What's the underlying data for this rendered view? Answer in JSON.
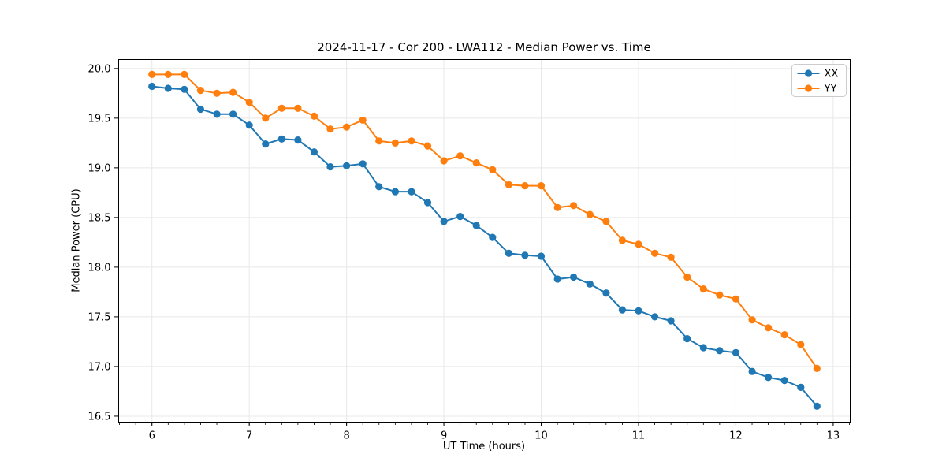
{
  "chart_data": {
    "type": "line",
    "title": "2024-11-17 - Cor 200 - LWA112 - Median Power vs. Time",
    "xlabel": "UT Time (hours)",
    "ylabel": "Median Power (CPU)",
    "xlim": [
      5.658,
      13.175
    ],
    "ylim": [
      16.44,
      20.09
    ],
    "xticks": [
      6,
      7,
      8,
      9,
      10,
      11,
      12,
      13
    ],
    "xtick_labels": [
      "6",
      "7",
      "8",
      "9",
      "10",
      "11",
      "12",
      "13"
    ],
    "yticks": [
      16.5,
      17.0,
      17.5,
      18.0,
      18.5,
      19.0,
      19.5,
      20.0
    ],
    "ytick_labels": [
      "16.5",
      "17.0",
      "17.5",
      "18.0",
      "18.5",
      "19.0",
      "19.5",
      "20.0"
    ],
    "x_minor_tick_step": 0.166667,
    "grid": true,
    "legend_position": "upper right",
    "marker": "circle",
    "x": [
      6.0,
      6.167,
      6.333,
      6.5,
      6.667,
      6.833,
      7.0,
      7.167,
      7.333,
      7.5,
      7.667,
      7.833,
      8.0,
      8.167,
      8.333,
      8.5,
      8.667,
      8.833,
      9.0,
      9.167,
      9.333,
      9.5,
      9.667,
      9.833,
      10.0,
      10.167,
      10.333,
      10.5,
      10.667,
      10.833,
      11.0,
      11.167,
      11.333,
      11.5,
      11.667,
      11.833,
      12.0,
      12.167,
      12.333,
      12.5,
      12.667,
      12.833
    ],
    "series": [
      {
        "name": "XX",
        "color": "#1f77b4",
        "values": [
          19.82,
          19.8,
          19.79,
          19.59,
          19.54,
          19.54,
          19.43,
          19.24,
          19.29,
          19.28,
          19.16,
          19.01,
          19.02,
          19.04,
          18.81,
          18.76,
          18.76,
          18.65,
          18.46,
          18.51,
          18.42,
          18.3,
          18.14,
          18.12,
          18.11,
          17.88,
          17.9,
          17.83,
          17.74,
          17.57,
          17.56,
          17.5,
          17.46,
          17.28,
          17.19,
          17.16,
          17.14,
          16.95,
          16.89,
          16.86,
          16.79,
          16.6
        ]
      },
      {
        "name": "YY",
        "color": "#ff7f0e",
        "values": [
          19.94,
          19.94,
          19.94,
          19.78,
          19.75,
          19.76,
          19.66,
          19.5,
          19.6,
          19.6,
          19.52,
          19.39,
          19.41,
          19.48,
          19.27,
          19.25,
          19.27,
          19.22,
          19.07,
          19.12,
          19.05,
          18.98,
          18.83,
          18.82,
          18.82,
          18.6,
          18.62,
          18.53,
          18.46,
          18.27,
          18.23,
          18.14,
          18.1,
          17.9,
          17.78,
          17.72,
          17.68,
          17.47,
          17.39,
          17.32,
          17.22,
          16.98
        ]
      }
    ],
    "style": {
      "grid_color": "#e8e8e8",
      "spine_color": "#000000",
      "legend_border_color": "#cccccc",
      "background": "#ffffff"
    }
  }
}
